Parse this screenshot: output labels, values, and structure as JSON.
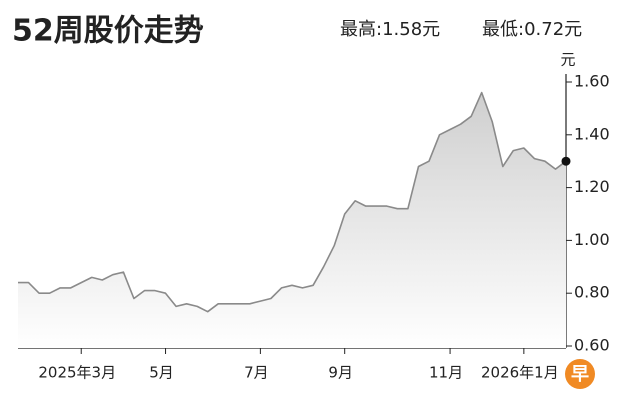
{
  "chart_data": {
    "type": "line",
    "title": "52周股价走势",
    "high_label": "最高:1.58元",
    "low_label": "最低:0.72元",
    "unit": "元",
    "logo": "早",
    "color": "#8a8a8a",
    "categories": [
      null,
      null,
      null,
      null,
      null,
      null,
      "2025年3月",
      null,
      null,
      null,
      null,
      null,
      null,
      null,
      "5月",
      null,
      null,
      null,
      null,
      null,
      null,
      null,
      null,
      "7月",
      null,
      null,
      null,
      null,
      null,
      null,
      null,
      "9月",
      null,
      null,
      null,
      null,
      null,
      null,
      null,
      null,
      null,
      "11月",
      null,
      null,
      null,
      null,
      null,
      null,
      "2026年1月",
      null,
      null,
      null,
      null
    ],
    "values": [
      0.84,
      0.84,
      0.8,
      0.8,
      0.82,
      0.82,
      0.84,
      0.86,
      0.85,
      0.87,
      0.88,
      0.78,
      0.81,
      0.81,
      0.8,
      0.75,
      0.76,
      0.75,
      0.73,
      0.76,
      0.76,
      0.76,
      0.76,
      0.77,
      0.78,
      0.82,
      0.83,
      0.82,
      0.83,
      0.9,
      0.98,
      1.1,
      1.15,
      1.13,
      1.13,
      1.13,
      1.12,
      1.12,
      1.28,
      1.3,
      1.4,
      1.42,
      1.44,
      1.47,
      1.56,
      1.45,
      1.28,
      1.34,
      1.35,
      1.31,
      1.3,
      1.27,
      1.3
    ],
    "ylim": [
      0.6,
      1.6
    ],
    "yticks": [
      {
        "value": 0.6,
        "label": "0.60"
      },
      {
        "value": 0.8,
        "label": "0.80"
      },
      {
        "value": 1.0,
        "label": "1.00"
      },
      {
        "value": 1.2,
        "label": "1.20"
      },
      {
        "value": 1.4,
        "label": "1.40"
      },
      {
        "value": 1.6,
        "label": "1.60"
      }
    ],
    "grid": false
  }
}
